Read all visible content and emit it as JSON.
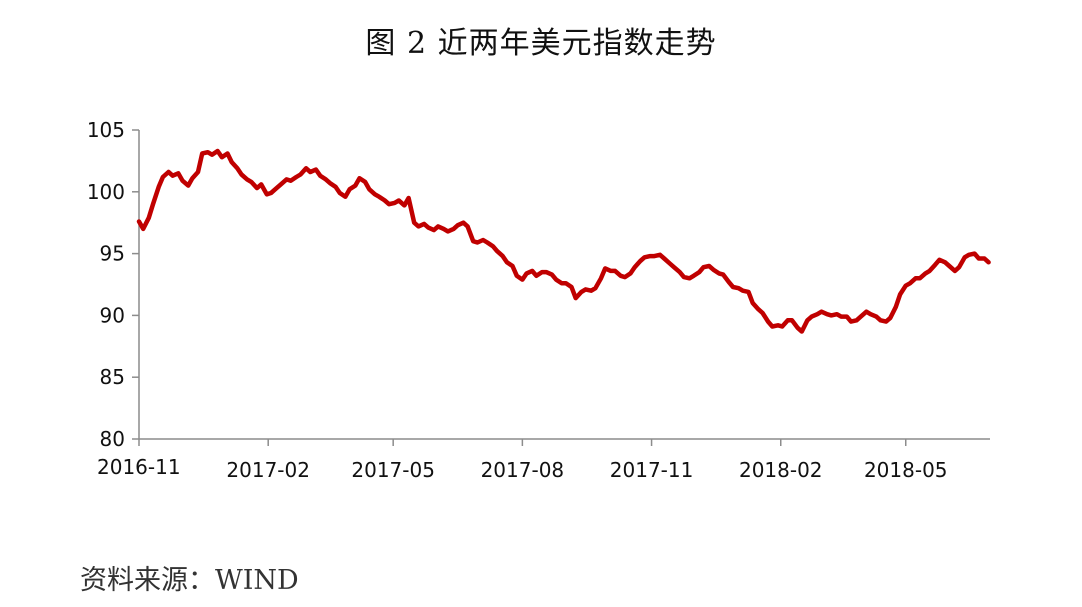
{
  "page": {
    "title": "图 2 近两年美元指数走势",
    "source": "资料来源：WIND"
  },
  "chart_data": {
    "type": "line",
    "title": "图 2 近两年美元指数走势",
    "xlabel": "",
    "ylabel": "",
    "ylim": [
      80,
      105
    ],
    "yticks": [
      "80",
      "85",
      "90",
      "95",
      "100",
      "105"
    ],
    "xticks": [
      "2016-11",
      "2017-02",
      "2017-05",
      "2017-08",
      "2017-11",
      "2018-02",
      "2018-05"
    ],
    "xrange": [
      "2016-11-01",
      "2018-06-30"
    ],
    "grid": false,
    "legend": "none",
    "line_color": "#c00000",
    "series": [
      {
        "x": [
          "2016-11-01",
          "2016-11-04",
          "2016-11-08",
          "2016-11-11",
          "2016-11-15",
          "2016-11-18",
          "2016-11-22",
          "2016-11-25",
          "2016-11-29",
          "2016-12-02",
          "2016-12-06",
          "2016-12-09",
          "2016-12-13",
          "2016-12-16",
          "2016-12-20",
          "2016-12-23",
          "2016-12-27",
          "2016-12-30",
          "2017-01-03",
          "2017-01-06",
          "2017-01-10",
          "2017-01-13",
          "2017-01-17",
          "2017-01-20",
          "2017-01-24",
          "2017-01-27",
          "2017-01-31",
          "2017-02-03",
          "2017-02-07",
          "2017-02-10",
          "2017-02-14",
          "2017-02-17",
          "2017-02-21",
          "2017-02-24",
          "2017-02-28",
          "2017-03-03",
          "2017-03-07",
          "2017-03-10",
          "2017-03-14",
          "2017-03-17",
          "2017-03-21",
          "2017-03-24",
          "2017-03-28",
          "2017-03-31",
          "2017-04-04",
          "2017-04-07",
          "2017-04-11",
          "2017-04-14",
          "2017-04-18",
          "2017-04-21",
          "2017-04-25",
          "2017-04-28",
          "2017-05-02",
          "2017-05-05",
          "2017-05-09",
          "2017-05-12",
          "2017-05-16",
          "2017-05-19",
          "2017-05-23",
          "2017-05-26",
          "2017-05-30",
          "2017-06-02",
          "2017-06-06",
          "2017-06-09",
          "2017-06-13",
          "2017-06-16",
          "2017-06-20",
          "2017-06-23",
          "2017-06-27",
          "2017-06-30",
          "2017-07-04",
          "2017-07-07",
          "2017-07-11",
          "2017-07-14",
          "2017-07-18",
          "2017-07-21",
          "2017-07-25",
          "2017-07-28",
          "2017-08-01",
          "2017-08-04",
          "2017-08-08",
          "2017-08-11",
          "2017-08-15",
          "2017-08-18",
          "2017-08-22",
          "2017-08-25",
          "2017-08-29",
          "2017-09-01",
          "2017-09-05",
          "2017-09-08",
          "2017-09-12",
          "2017-09-15",
          "2017-09-19",
          "2017-09-22",
          "2017-09-26",
          "2017-09-29",
          "2017-10-03",
          "2017-10-06",
          "2017-10-10",
          "2017-10-13",
          "2017-10-17",
          "2017-10-20",
          "2017-10-24",
          "2017-10-27",
          "2017-10-31",
          "2017-11-03",
          "2017-11-07",
          "2017-11-10",
          "2017-11-14",
          "2017-11-17",
          "2017-11-21",
          "2017-11-24",
          "2017-11-28",
          "2017-12-01",
          "2017-12-05",
          "2017-12-08",
          "2017-12-12",
          "2017-12-15",
          "2017-12-19",
          "2017-12-22",
          "2017-12-26",
          "2017-12-29",
          "2018-01-02",
          "2018-01-05",
          "2018-01-09",
          "2018-01-12",
          "2018-01-16",
          "2018-01-19",
          "2018-01-23",
          "2018-01-26",
          "2018-01-30",
          "2018-02-02",
          "2018-02-06",
          "2018-02-09",
          "2018-02-13",
          "2018-02-16",
          "2018-02-20",
          "2018-02-23",
          "2018-02-27",
          "2018-03-02",
          "2018-03-06",
          "2018-03-09",
          "2018-03-13",
          "2018-03-16",
          "2018-03-20",
          "2018-03-23",
          "2018-03-27",
          "2018-03-30",
          "2018-04-03",
          "2018-04-06",
          "2018-04-10",
          "2018-04-13",
          "2018-04-17",
          "2018-04-20",
          "2018-04-24",
          "2018-04-27",
          "2018-05-01",
          "2018-05-04",
          "2018-05-08",
          "2018-05-11",
          "2018-05-15",
          "2018-05-18",
          "2018-05-22",
          "2018-05-25",
          "2018-05-29",
          "2018-06-01",
          "2018-06-05",
          "2018-06-08",
          "2018-06-12",
          "2018-06-15",
          "2018-06-19",
          "2018-06-22",
          "2018-06-26",
          "2018-06-29"
        ],
        "values": [
          97.6,
          97.0,
          97.9,
          99.0,
          100.4,
          101.2,
          101.6,
          101.3,
          101.5,
          100.9,
          100.5,
          101.1,
          101.6,
          103.1,
          103.2,
          103.0,
          103.3,
          102.8,
          103.1,
          102.4,
          101.9,
          101.4,
          101.0,
          100.8,
          100.3,
          100.6,
          99.8,
          99.9,
          100.3,
          100.6,
          101.0,
          100.9,
          101.2,
          101.4,
          101.9,
          101.6,
          101.8,
          101.3,
          101.0,
          100.7,
          100.4,
          99.9,
          99.6,
          100.2,
          100.5,
          101.1,
          100.8,
          100.2,
          99.8,
          99.6,
          99.3,
          99.0,
          99.1,
          99.3,
          98.9,
          99.5,
          97.5,
          97.2,
          97.4,
          97.1,
          96.9,
          97.2,
          97.0,
          96.8,
          97.0,
          97.3,
          97.5,
          97.2,
          96.0,
          95.9,
          96.1,
          95.9,
          95.6,
          95.2,
          94.8,
          94.3,
          94.0,
          93.2,
          92.9,
          93.4,
          93.6,
          93.2,
          93.5,
          93.5,
          93.3,
          92.9,
          92.6,
          92.6,
          92.3,
          91.4,
          91.9,
          92.1,
          92.0,
          92.2,
          93.0,
          93.8,
          93.6,
          93.6,
          93.2,
          93.1,
          93.4,
          93.9,
          94.4,
          94.7,
          94.8,
          94.8,
          94.9,
          94.6,
          94.2,
          93.9,
          93.5,
          93.1,
          93.0,
          93.2,
          93.5,
          93.9,
          94.0,
          93.7,
          93.4,
          93.3,
          92.7,
          92.3,
          92.2,
          92.0,
          91.9,
          91.0,
          90.5,
          90.2,
          89.5,
          89.1,
          89.2,
          89.1,
          89.6,
          89.6,
          89.0,
          88.7,
          89.6,
          89.9,
          90.1,
          90.3,
          90.1,
          90.0,
          90.1,
          89.9,
          89.9,
          89.5,
          89.6,
          89.9,
          90.3,
          90.1,
          89.9,
          89.6,
          89.5,
          89.8,
          90.7,
          91.7,
          92.4,
          92.6,
          93.0,
          93.0,
          93.4,
          93.6,
          94.1,
          94.5,
          94.3,
          94.0,
          93.6,
          93.9,
          94.7,
          94.9,
          95.0,
          94.6,
          94.6,
          94.3
        ]
      }
    ]
  }
}
